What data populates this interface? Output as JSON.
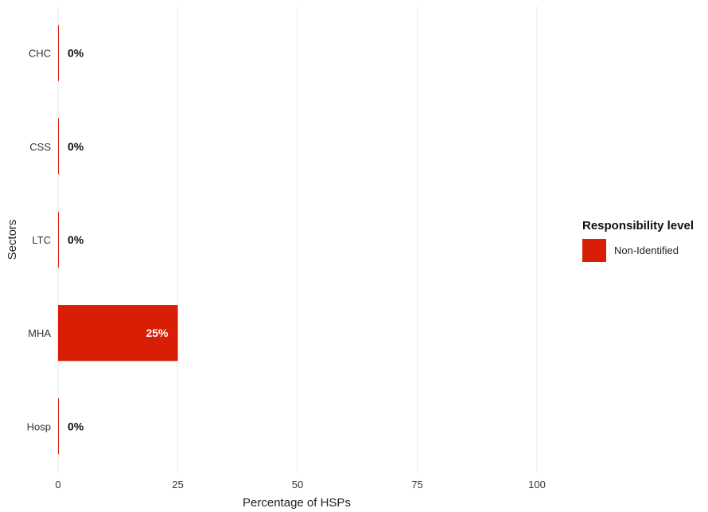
{
  "chart_data": {
    "type": "bar",
    "orientation": "horizontal",
    "categories": [
      "CHC",
      "CSS",
      "LTC",
      "MHA",
      "Hosp"
    ],
    "series": [
      {
        "name": "Non-Identified",
        "values": [
          0,
          0,
          0,
          25,
          0
        ],
        "color": "#D81E05"
      }
    ],
    "data_labels": [
      "0%",
      "0%",
      "0%",
      "25%",
      "0%"
    ],
    "xlabel": "Percentage of HSPs",
    "ylabel": "Sectors",
    "xlim": [
      0,
      100
    ],
    "x_ticks": [
      0,
      25,
      50,
      75,
      100
    ],
    "grid": true,
    "legend": {
      "title": "Responsibility level",
      "position": "right"
    }
  }
}
